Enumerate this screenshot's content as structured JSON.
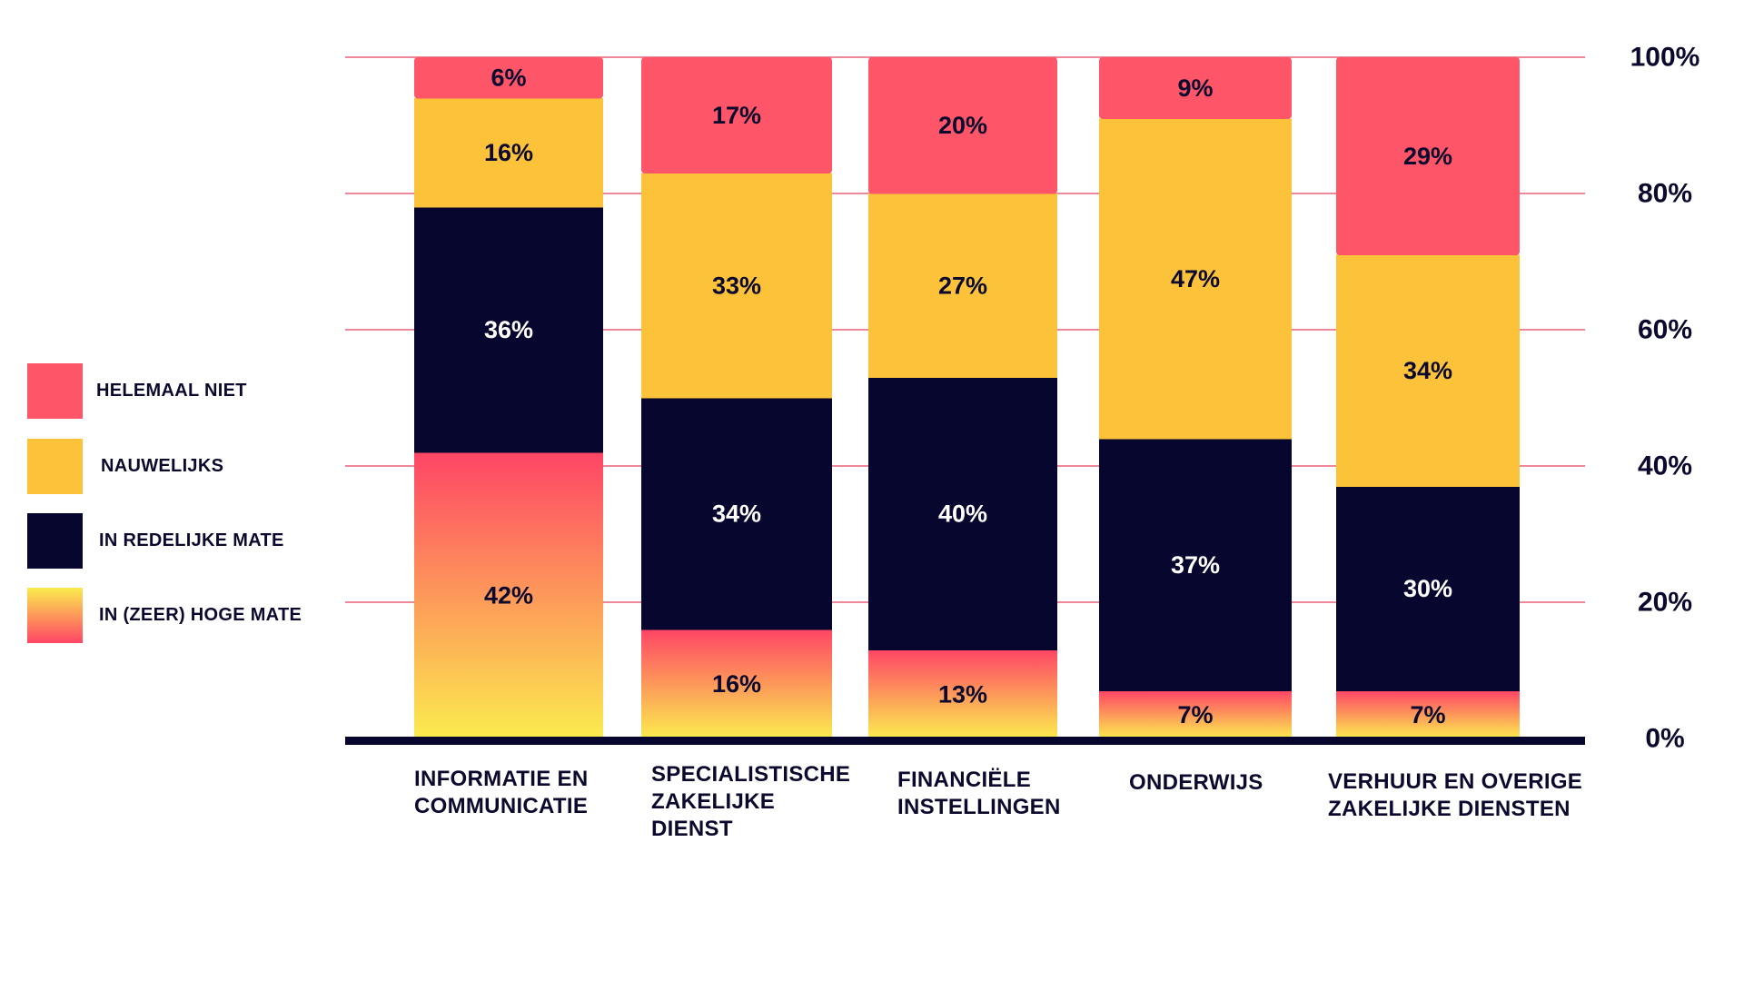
{
  "chart_data": {
    "type": "bar",
    "stacked": true,
    "normalized": true,
    "title": "",
    "xlabel": "",
    "ylabel": "",
    "ylim": [
      0,
      100
    ],
    "y_ticks": [
      "0%",
      "20%",
      "40%",
      "60%",
      "80%",
      "100%"
    ],
    "y_tick_values": [
      0,
      20,
      40,
      60,
      80,
      100
    ],
    "y_axis_side": "right",
    "grid": true,
    "legend_position": "left",
    "categories": [
      "INFORMATIE EN COMMUNICATIE",
      "SPECIALISTISCHE ZAKELIJKE DIENST",
      "FINANCIËLE INSTELLINGEN",
      "ONDERWIJS",
      "VERHUUR EN OVERIGE ZAKELIJKE DIENSTEN"
    ],
    "category_label_lines": [
      [
        "INFORMATIE EN",
        "COMMUNICATIE"
      ],
      [
        "SPECIALISTISCHE",
        "ZAKELIJKE",
        "DIENST"
      ],
      [
        "FINANCIËLE",
        "INSTELLINGEN"
      ],
      [
        "ONDERWIJS"
      ],
      [
        "VERHUUR EN OVERIGE",
        "ZAKELIJKE DIENSTEN"
      ]
    ],
    "series": [
      {
        "name": "IN (ZEER) HOGE MATE",
        "key": "hoog",
        "values": [
          42,
          16,
          13,
          7,
          7
        ],
        "labels": [
          "42%",
          "16%",
          "13%",
          "7%",
          "7%"
        ]
      },
      {
        "name": "IN REDELIJKE MATE",
        "key": "redelijk",
        "values": [
          36,
          34,
          40,
          37,
          30
        ],
        "labels": [
          "36%",
          "34%",
          "40%",
          "37%",
          "30%"
        ]
      },
      {
        "name": "NAUWELIJKS",
        "key": "nauwelijks",
        "values": [
          16,
          33,
          27,
          47,
          34
        ],
        "labels": [
          "16%",
          "33%",
          "27%",
          "47%",
          "34%"
        ]
      },
      {
        "name": "HELEMAAL NIET",
        "key": "niet",
        "values": [
          6,
          17,
          20,
          9,
          29
        ],
        "labels": [
          "6%",
          "17%",
          "20%",
          "9%",
          "29%"
        ]
      }
    ],
    "legend_order": [
      "HELEMAAL NIET",
      "NAUWELIJKS",
      "IN REDELIJKE MATE",
      "IN (ZEER) HOGE MATE"
    ],
    "colors": {
      "niet": "#ff5568",
      "nauwelijks": "#fcc23a",
      "redelijk": "#07062e",
      "hoog_top": "#ff4566",
      "hoog_bottom": "#fbec4e",
      "grid": "#e9607a",
      "axis": "#07062e",
      "text_dark": "#0b0a2e",
      "text_light": "#ffffff"
    }
  }
}
